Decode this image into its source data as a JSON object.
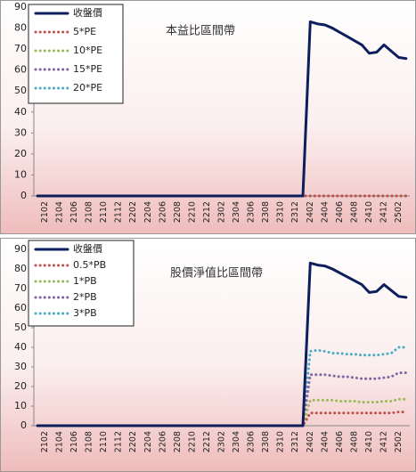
{
  "chart_data": [
    {
      "type": "line",
      "title": "本益比區間帶",
      "categories": [
        null,
        "2102",
        null,
        "2104",
        null,
        "2106",
        null,
        "2108",
        null,
        "2110",
        null,
        "2112",
        null,
        "2202",
        null,
        "2204",
        null,
        "2206",
        null,
        "2208",
        null,
        "2210",
        null,
        "2212",
        null,
        "2302",
        null,
        "2304",
        null,
        "2306",
        null,
        "2308",
        null,
        "2310",
        null,
        "2312",
        null,
        "2402",
        null,
        "2404",
        null,
        "2406",
        null,
        "2408",
        null,
        "2410",
        null,
        "2412",
        null,
        "2502",
        null
      ],
      "ylim": [
        0,
        90
      ],
      "yticks": [
        0,
        10,
        20,
        30,
        40,
        50,
        60,
        70,
        80,
        90
      ],
      "legend": "upper left",
      "series": [
        {
          "name": "收盤價",
          "color": "#0c1f5c",
          "style": "solid",
          "values": [
            0,
            0,
            0,
            0,
            0,
            0,
            0,
            0,
            0,
            0,
            0,
            0,
            0,
            0,
            0,
            0,
            0,
            0,
            0,
            0,
            0,
            0,
            0,
            0,
            0,
            0,
            0,
            0,
            0,
            0,
            0,
            0,
            0,
            0,
            0,
            0,
            0,
            83,
            82,
            81.5,
            80,
            78,
            76,
            74,
            72,
            68,
            68.5,
            72,
            69,
            66,
            65.5
          ]
        },
        {
          "name": "5*PE",
          "color": "#c0504d",
          "style": "dotted",
          "values": [
            0,
            0,
            0,
            0,
            0,
            0,
            0,
            0,
            0,
            0,
            0,
            0,
            0,
            0,
            0,
            0,
            0,
            0,
            0,
            0,
            0,
            0,
            0,
            0,
            0,
            0,
            0,
            0,
            0,
            0,
            0,
            0,
            0,
            0,
            0,
            0,
            0,
            0,
            0,
            0,
            0,
            0,
            0,
            0,
            0,
            0,
            0,
            0,
            0,
            0,
            0
          ]
        },
        {
          "name": "10*PE",
          "color": "#9bbb59",
          "style": "dotted",
          "values": [
            0,
            0,
            0,
            0,
            0,
            0,
            0,
            0,
            0,
            0,
            0,
            0,
            0,
            0,
            0,
            0,
            0,
            0,
            0,
            0,
            0,
            0,
            0,
            0,
            0,
            0,
            0,
            0,
            0,
            0,
            0,
            0,
            0,
            0,
            0,
            0,
            0,
            0,
            0,
            0,
            0,
            0,
            0,
            0,
            0,
            0,
            0,
            0,
            0,
            0,
            0
          ]
        },
        {
          "name": "15*PE",
          "color": "#8064a2",
          "style": "dotted",
          "values": [
            0,
            0,
            0,
            0,
            0,
            0,
            0,
            0,
            0,
            0,
            0,
            0,
            0,
            0,
            0,
            0,
            0,
            0,
            0,
            0,
            0,
            0,
            0,
            0,
            0,
            0,
            0,
            0,
            0,
            0,
            0,
            0,
            0,
            0,
            0,
            0,
            0,
            0,
            0,
            0,
            0,
            0,
            0,
            0,
            0,
            0,
            0,
            0,
            0,
            0,
            0
          ]
        },
        {
          "name": "20*PE",
          "color": "#4bacc6",
          "style": "dotted",
          "values": [
            0,
            0,
            0,
            0,
            0,
            0,
            0,
            0,
            0,
            0,
            0,
            0,
            0,
            0,
            0,
            0,
            0,
            0,
            0,
            0,
            0,
            0,
            0,
            0,
            0,
            0,
            0,
            0,
            0,
            0,
            0,
            0,
            0,
            0,
            0,
            0,
            0,
            0,
            0,
            0,
            0,
            0,
            0,
            0,
            0,
            0,
            0,
            0,
            0,
            0,
            0
          ]
        }
      ]
    },
    {
      "type": "line",
      "title": "股價淨值比區間帶",
      "categories": [
        null,
        "2102",
        null,
        "2104",
        null,
        "2106",
        null,
        "2108",
        null,
        "2110",
        null,
        "2112",
        null,
        "2202",
        null,
        "2204",
        null,
        "2206",
        null,
        "2208",
        null,
        "2210",
        null,
        "2212",
        null,
        "2302",
        null,
        "2304",
        null,
        "2306",
        null,
        "2308",
        null,
        "2310",
        null,
        "2312",
        null,
        "2402",
        null,
        "2404",
        null,
        "2406",
        null,
        "2408",
        null,
        "2410",
        null,
        "2412",
        null,
        "2502",
        null
      ],
      "ylim": [
        0,
        90
      ],
      "yticks": [
        0,
        10,
        20,
        30,
        40,
        50,
        60,
        70,
        80,
        90
      ],
      "legend": "upper left",
      "series": [
        {
          "name": "收盤價",
          "color": "#0c1f5c",
          "style": "solid",
          "values": [
            0,
            0,
            0,
            0,
            0,
            0,
            0,
            0,
            0,
            0,
            0,
            0,
            0,
            0,
            0,
            0,
            0,
            0,
            0,
            0,
            0,
            0,
            0,
            0,
            0,
            0,
            0,
            0,
            0,
            0,
            0,
            0,
            0,
            0,
            0,
            0,
            0,
            83,
            82,
            81.5,
            80,
            78,
            76,
            74,
            72,
            68,
            68.5,
            72,
            69,
            66,
            65.5
          ]
        },
        {
          "name": "0.5*PB",
          "color": "#c0504d",
          "style": "dotted",
          "values": [
            0,
            0,
            0,
            0,
            0,
            0,
            0,
            0,
            0,
            0,
            0,
            0,
            0,
            0,
            0,
            0,
            0,
            0,
            0,
            0,
            0,
            0,
            0,
            0,
            0,
            0,
            0,
            0,
            0,
            0,
            0,
            0,
            0,
            0,
            0,
            0,
            0,
            6.5,
            6.5,
            6.5,
            6.5,
            6.5,
            6.5,
            6.5,
            6.5,
            6.5,
            6.5,
            6.5,
            6.5,
            7,
            7
          ]
        },
        {
          "name": "1*PB",
          "color": "#9bbb59",
          "style": "dotted",
          "values": [
            0,
            0,
            0,
            0,
            0,
            0,
            0,
            0,
            0,
            0,
            0,
            0,
            0,
            0,
            0,
            0,
            0,
            0,
            0,
            0,
            0,
            0,
            0,
            0,
            0,
            0,
            0,
            0,
            0,
            0,
            0,
            0,
            0,
            0,
            0,
            0,
            0,
            13,
            13,
            13,
            13,
            12.5,
            12.5,
            12.5,
            12,
            12,
            12,
            12.5,
            12.5,
            13.5,
            13.5
          ]
        },
        {
          "name": "2*PB",
          "color": "#8064a2",
          "style": "dotted",
          "values": [
            0,
            0,
            0,
            0,
            0,
            0,
            0,
            0,
            0,
            0,
            0,
            0,
            0,
            0,
            0,
            0,
            0,
            0,
            0,
            0,
            0,
            0,
            0,
            0,
            0,
            0,
            0,
            0,
            0,
            0,
            0,
            0,
            0,
            0,
            0,
            0,
            0,
            26,
            26,
            26,
            25.5,
            25,
            25,
            24.5,
            24,
            24,
            24,
            24.5,
            25,
            27,
            27
          ]
        },
        {
          "name": "3*PB",
          "color": "#4bacc6",
          "style": "dotted",
          "values": [
            0,
            0,
            0,
            0,
            0,
            0,
            0,
            0,
            0,
            0,
            0,
            0,
            0,
            0,
            0,
            0,
            0,
            0,
            0,
            0,
            0,
            0,
            0,
            0,
            0,
            0,
            0,
            0,
            0,
            0,
            0,
            0,
            0,
            0,
            0,
            0,
            0,
            38,
            38.5,
            38,
            37,
            37,
            36.5,
            36.5,
            36,
            36,
            36,
            36.5,
            37,
            40,
            40
          ]
        }
      ]
    }
  ]
}
